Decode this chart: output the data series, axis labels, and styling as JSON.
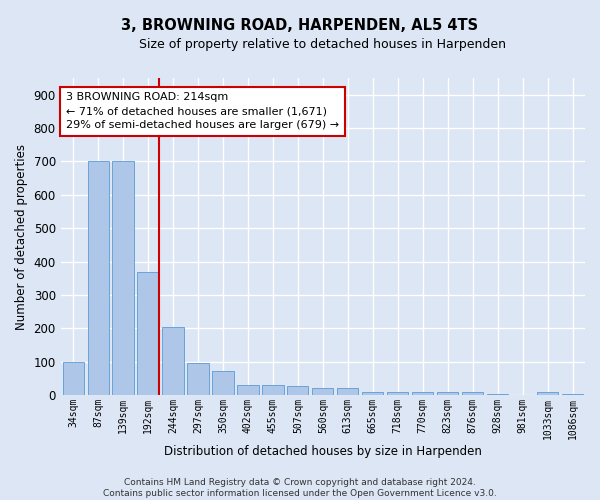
{
  "title": "3, BROWNING ROAD, HARPENDEN, AL5 4TS",
  "subtitle": "Size of property relative to detached houses in Harpenden",
  "xlabel": "Distribution of detached houses by size in Harpenden",
  "ylabel": "Number of detached properties",
  "categories": [
    "34sqm",
    "87sqm",
    "139sqm",
    "192sqm",
    "244sqm",
    "297sqm",
    "350sqm",
    "402sqm",
    "455sqm",
    "507sqm",
    "560sqm",
    "613sqm",
    "665sqm",
    "718sqm",
    "770sqm",
    "823sqm",
    "876sqm",
    "928sqm",
    "981sqm",
    "1033sqm",
    "1086sqm"
  ],
  "values": [
    100,
    700,
    700,
    370,
    205,
    95,
    72,
    30,
    30,
    28,
    20,
    20,
    10,
    8,
    8,
    8,
    8,
    2,
    0,
    8,
    2
  ],
  "bar_color": "#aec6e8",
  "bar_edge_color": "#5b9bd5",
  "background_color": "#dce6f5",
  "fig_background_color": "#dce6f5",
  "grid_color": "#ffffff",
  "annotation_box_color": "#cc0000",
  "vline_color": "#cc0000",
  "annotation_text": "3 BROWNING ROAD: 214sqm\n← 71% of detached houses are smaller (1,671)\n29% of semi-detached houses are larger (679) →",
  "footnote": "Contains HM Land Registry data © Crown copyright and database right 2024.\nContains public sector information licensed under the Open Government Licence v3.0.",
  "ylim": [
    0,
    950
  ],
  "yticks": [
    0,
    100,
    200,
    300,
    400,
    500,
    600,
    700,
    800,
    900
  ]
}
